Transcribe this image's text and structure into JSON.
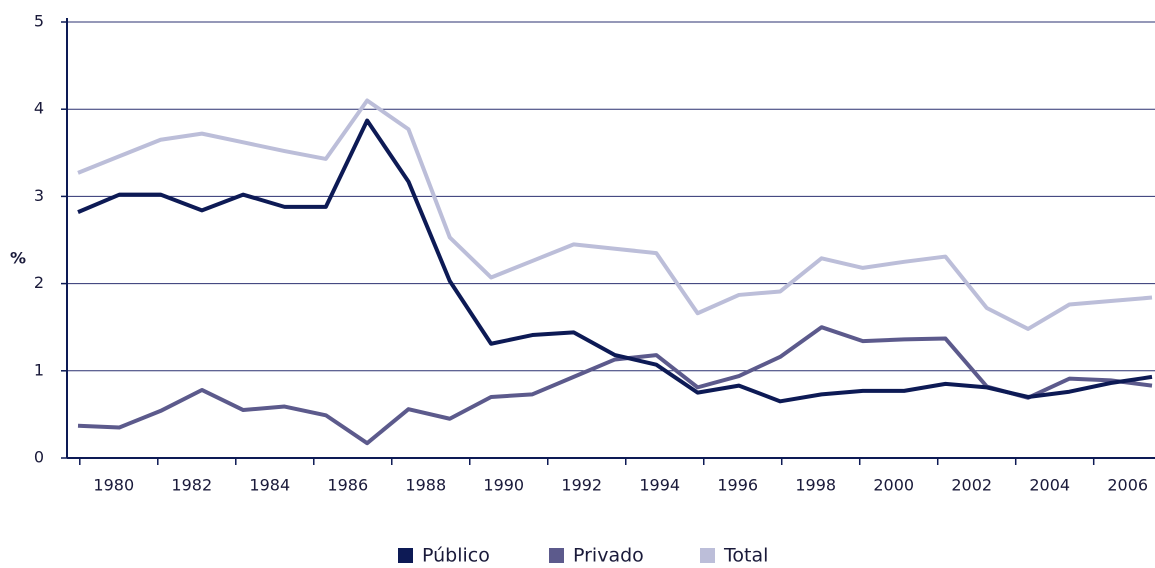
{
  "chart_data": {
    "type": "line",
    "ylabel": "%",
    "ylim": [
      0,
      5
    ],
    "yticks": [
      0,
      1,
      2,
      3,
      4,
      5
    ],
    "grid": true,
    "xlim": [
      1978.8,
      2006.7
    ],
    "xticks": [
      1980,
      1982,
      1984,
      1986,
      1988,
      1990,
      1992,
      1994,
      1996,
      1998,
      2000,
      2002,
      2004,
      2006
    ],
    "series": [
      {
        "name": "Total",
        "color": "#bcbed9",
        "values": [
          3.27,
          3.46,
          3.65,
          3.72,
          3.62,
          3.52,
          3.43,
          4.1,
          3.77,
          2.53,
          2.07,
          2.26,
          2.45,
          2.4,
          2.35,
          1.66,
          1.87,
          1.91,
          2.29,
          2.18,
          2.25,
          2.31,
          1.72,
          1.48,
          1.76,
          1.8,
          1.84
        ]
      },
      {
        "name": "Privado",
        "color": "#5c5a8c",
        "values": [
          0.37,
          0.35,
          0.54,
          0.78,
          0.55,
          0.59,
          0.49,
          0.17,
          0.56,
          0.45,
          0.7,
          0.73,
          0.93,
          1.13,
          1.18,
          0.81,
          0.94,
          1.16,
          1.5,
          1.34,
          1.36,
          1.37,
          0.82,
          0.69,
          0.91,
          0.89,
          0.83
        ]
      },
      {
        "name": "Público",
        "color": "#0d1a55",
        "values": [
          2.82,
          3.02,
          3.02,
          2.84,
          3.02,
          2.88,
          2.88,
          3.87,
          3.17,
          2.03,
          1.31,
          1.41,
          1.44,
          1.18,
          1.07,
          0.75,
          0.83,
          0.65,
          0.73,
          0.77,
          0.77,
          0.85,
          0.81,
          0.7,
          0.76,
          0.86,
          0.93
        ]
      }
    ],
    "legend_order": [
      2,
      1,
      0
    ]
  }
}
